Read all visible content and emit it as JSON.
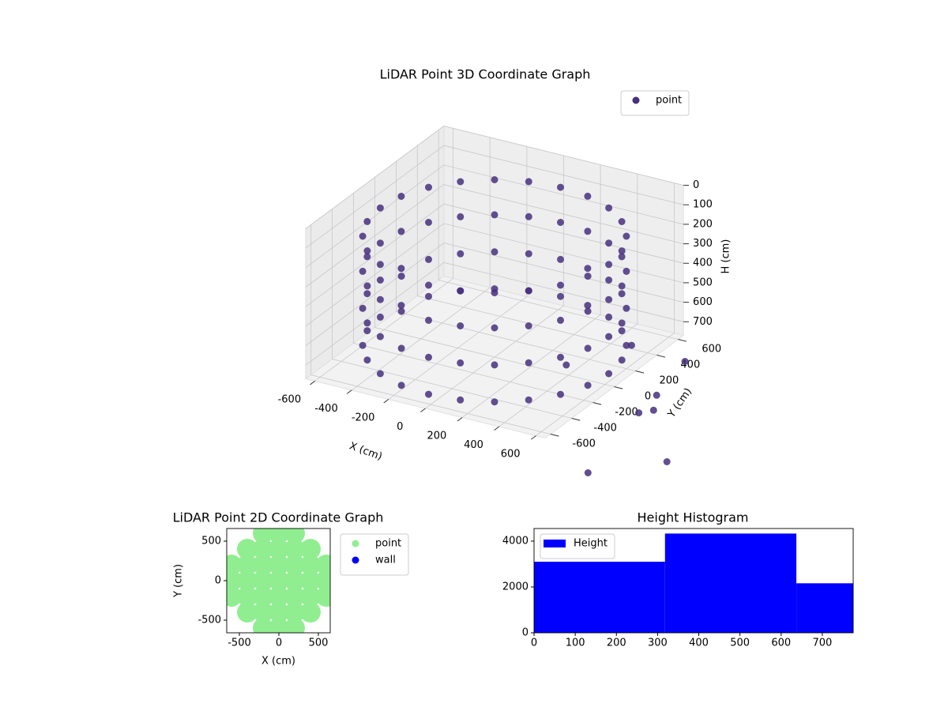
{
  "chart_data": [
    {
      "type": "scatter3d",
      "title": "LiDAR Point 3D Coordinate Graph",
      "xlabel": "X (cm)",
      "ylabel": "Y (cm)",
      "zlabel": "H (cm)",
      "xlim": [
        -650,
        650
      ],
      "ylim": [
        -650,
        650
      ],
      "zlim": [
        770,
        0
      ],
      "xticks": [
        -600,
        -400,
        -200,
        0,
        200,
        400,
        600
      ],
      "yticks": [
        -600,
        -400,
        -200,
        0,
        200,
        400,
        600
      ],
      "zticks": [
        0,
        100,
        200,
        300,
        400,
        500,
        600,
        700
      ],
      "grid": true,
      "legend": "upper right",
      "series": [
        {
          "name": "point",
          "color": "#46307e",
          "x": [
            620,
            599,
            537,
            438,
            310,
            160,
            0,
            -160,
            -310,
            -438,
            -537,
            -599,
            -620,
            -599,
            -537,
            -438,
            -310,
            -160,
            0,
            160,
            310,
            438,
            537,
            599,
            620,
            599,
            537,
            438,
            310,
            160,
            0,
            -160,
            -310,
            -438,
            -537,
            -599,
            -620,
            -599,
            -537,
            -438,
            -310,
            -160,
            0,
            160,
            310,
            438,
            537,
            599,
            620,
            599,
            537,
            438,
            310,
            160,
            0,
            -160,
            -310,
            -438,
            -537,
            -599,
            -620,
            -599,
            -537,
            -438,
            -310,
            -160,
            0,
            160,
            310,
            438,
            537,
            599,
            620,
            599,
            537,
            438,
            310,
            160,
            0,
            -160,
            -310,
            -438,
            -537,
            -599,
            -620,
            -599,
            -537,
            -438,
            -310,
            -160,
            0,
            160,
            310,
            438,
            537,
            599,
            810,
            1026,
            1287,
            904,
            504,
            346,
            880,
            950
          ],
          "y": [
            0,
            160,
            310,
            438,
            537,
            599,
            620,
            599,
            537,
            438,
            310,
            160,
            0,
            -160,
            -310,
            -438,
            -537,
            -599,
            -620,
            -599,
            -537,
            -438,
            -310,
            -160,
            0,
            160,
            310,
            438,
            537,
            599,
            620,
            599,
            537,
            438,
            310,
            160,
            0,
            -160,
            -310,
            -438,
            -537,
            -599,
            -620,
            -599,
            -537,
            -438,
            -310,
            -160,
            0,
            160,
            310,
            438,
            537,
            599,
            620,
            599,
            537,
            438,
            310,
            160,
            0,
            -160,
            -310,
            -438,
            -537,
            -599,
            -620,
            -599,
            -537,
            -438,
            -310,
            -160,
            0,
            160,
            310,
            438,
            537,
            599,
            620,
            599,
            537,
            438,
            310,
            160,
            0,
            -160,
            -310,
            -438,
            -537,
            -599,
            -620,
            -599,
            -537,
            -438,
            -310,
            -160,
            388,
            -898,
            -608,
            -209,
            415,
            75,
            0,
            -150
          ],
          "z": [
            150,
            150,
            150,
            150,
            150,
            150,
            150,
            150,
            150,
            150,
            150,
            150,
            150,
            150,
            150,
            150,
            150,
            150,
            150,
            150,
            150,
            150,
            150,
            150,
            330,
            330,
            330,
            330,
            330,
            330,
            330,
            330,
            330,
            330,
            330,
            330,
            330,
            330,
            330,
            330,
            330,
            330,
            330,
            330,
            330,
            330,
            330,
            330,
            520,
            520,
            520,
            520,
            520,
            520,
            520,
            520,
            520,
            520,
            520,
            520,
            520,
            520,
            520,
            520,
            520,
            520,
            520,
            520,
            520,
            520,
            520,
            520,
            710,
            710,
            710,
            710,
            710,
            710,
            710,
            710,
            710,
            710,
            710,
            710,
            710,
            710,
            710,
            710,
            710,
            710,
            710,
            710,
            710,
            710,
            710,
            710,
            760,
            760,
            760,
            760,
            760,
            760,
            760,
            760
          ]
        }
      ]
    },
    {
      "type": "scatter",
      "title": "LiDAR Point 2D Coordinate Graph",
      "xlabel": "X (cm)",
      "ylabel": "Y (cm)",
      "xlim": [
        -660,
        650
      ],
      "ylim": [
        -660,
        660
      ],
      "xticks": [
        -500,
        0,
        500
      ],
      "yticks": [
        -500,
        0,
        500
      ],
      "legend": "right",
      "series": [
        {
          "name": "point",
          "color": "#90ee90",
          "x": [
            -200,
            0,
            200,
            -400,
            -200,
            0,
            200,
            400,
            -600,
            -400,
            -200,
            0,
            200,
            400,
            600,
            -600,
            -400,
            -200,
            0,
            200,
            400,
            600,
            -600,
            -400,
            -200,
            0,
            200,
            400,
            600,
            -400,
            -200,
            0,
            200,
            400,
            -200,
            0,
            200
          ],
          "y": [
            600,
            600,
            600,
            400,
            400,
            400,
            400,
            400,
            200,
            200,
            200,
            200,
            200,
            200,
            200,
            0,
            0,
            0,
            0,
            0,
            0,
            0,
            -200,
            -200,
            -200,
            -200,
            -200,
            -200,
            -200,
            -400,
            -400,
            -400,
            -400,
            -400,
            -600,
            -600,
            -600
          ]
        },
        {
          "name": "wall",
          "color": "#0000ff",
          "x": [
            600,
            -600,
            0
          ],
          "y": [
            0,
            0,
            600
          ]
        }
      ]
    },
    {
      "type": "histogram",
      "title": "Height Histogram",
      "bins": [
        0,
        318,
        637,
        775
      ],
      "xlim": [
        0,
        775
      ],
      "ylim": [
        0,
        4550
      ],
      "xticks": [
        0,
        100,
        200,
        300,
        400,
        500,
        600,
        700
      ],
      "yticks": [
        0,
        2000,
        4000
      ],
      "legend": "upper left",
      "series": [
        {
          "name": "Height",
          "color": "#0000ff",
          "values": [
            3100,
            4330,
            2160
          ]
        }
      ]
    }
  ]
}
